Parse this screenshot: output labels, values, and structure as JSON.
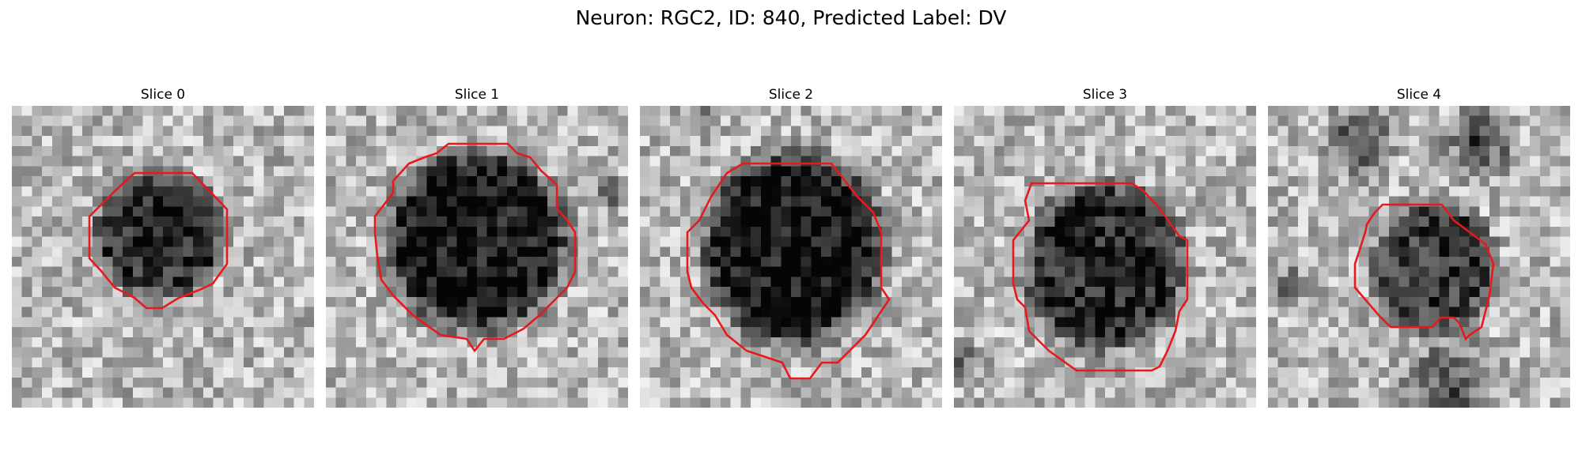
{
  "figure": {
    "title": "Neuron: RGC2, ID: 840, Predicted Label: DV"
  },
  "colors": {
    "contour": "#e8191c",
    "colormap": "grayscale"
  },
  "panels": [
    {
      "title": "Slice 0"
    },
    {
      "title": "Slice 1"
    },
    {
      "title": "Slice 2"
    },
    {
      "title": "Slice 3"
    },
    {
      "title": "Slice 4"
    }
  ]
}
